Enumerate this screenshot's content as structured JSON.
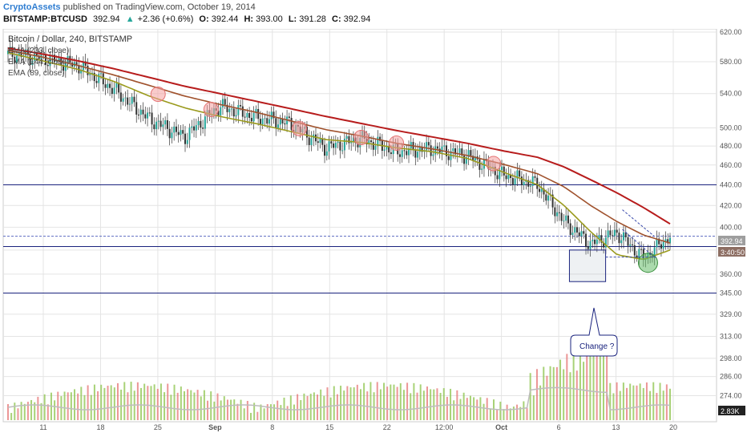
{
  "header": {
    "author": "CryptoAssets",
    "published": "published on TradingView.com, October 19, 2014",
    "symbol": "BITSTAMP:BTCUSD",
    "last": "392.94",
    "change_arrow": "▲",
    "change": "+2.36 (+0.6%)",
    "o_label": "O:",
    "o_value": "392.44",
    "h_label": "H:",
    "h_value": "393.00",
    "l_label": "L:",
    "l_value": "391.28",
    "c_label": "C:",
    "c_value": "392.94"
  },
  "legend": {
    "title": "Bitcoin / Dollar, 240, BITSTAMP",
    "items": [
      "EMA (233, close)",
      "EMA (144, close)",
      "EMA (89, close)"
    ]
  },
  "annotation": {
    "text": "Change ?"
  },
  "price_tags": {
    "last": "392.94",
    "level": "3:40:50",
    "volume": "2.83K"
  },
  "colors": {
    "ema233": "#b71c1c",
    "ema144": "#a0522d",
    "ema89": "#9a9a1c",
    "hline": "#1a237e",
    "up": "#26a69a",
    "down": "#333333",
    "vol_up": "#8bc34a",
    "vol_down": "#e57373",
    "grid": "#e4e4e4",
    "circle_red": "#f4a0a0",
    "circle_green": "#66bb6a"
  },
  "chart_data": {
    "type": "line",
    "title": "Bitcoin / Dollar, 240, BITSTAMP",
    "xlabel": "",
    "ylabel": "",
    "y_scale": "log",
    "ylim": [
      265,
      620
    ],
    "x_ticks": [
      "11",
      "18",
      "25",
      "Sep",
      "8",
      "15",
      "22",
      "12:00",
      "Oct",
      "6",
      "13",
      "20"
    ],
    "y_ticks": [
      620,
      580,
      540,
      500,
      480,
      460,
      440,
      420,
      400,
      380,
      360,
      345,
      329,
      313,
      298,
      286,
      274
    ],
    "x": [
      0,
      4,
      8,
      12,
      16,
      20,
      24,
      28,
      32,
      36,
      40,
      44,
      48,
      52,
      56,
      60,
      63,
      66,
      69,
      72,
      75
    ],
    "close": [
      590,
      585,
      575,
      545,
      510,
      490,
      525,
      512,
      505,
      478,
      488,
      474,
      477,
      470,
      450,
      440,
      405,
      385,
      395,
      373,
      392
    ],
    "series": [
      {
        "name": "EMA (233, close)",
        "values": [
          598,
          590,
          581,
          571,
          560,
          549,
          540,
          531,
          522,
          513,
          505,
          497,
          490,
          483,
          475,
          468,
          458,
          445,
          432,
          418,
          403
        ]
      },
      {
        "name": "EMA (144, close)",
        "values": [
          595,
          586,
          575,
          563,
          550,
          537,
          527,
          518,
          508,
          498,
          491,
          483,
          477,
          470,
          461,
          451,
          438,
          420,
          405,
          393,
          386
        ]
      },
      {
        "name": "EMA (89, close)",
        "values": [
          592,
          581,
          570,
          555,
          537,
          523,
          513,
          505,
          496,
          487,
          484,
          478,
          474,
          467,
          453,
          440,
          420,
          396,
          376,
          372,
          380
        ]
      }
    ],
    "horizontal_levels": [
      440,
      383,
      345
    ],
    "volume_axis_label": "2.83K",
    "legend_position": "top-left",
    "grid": true
  }
}
